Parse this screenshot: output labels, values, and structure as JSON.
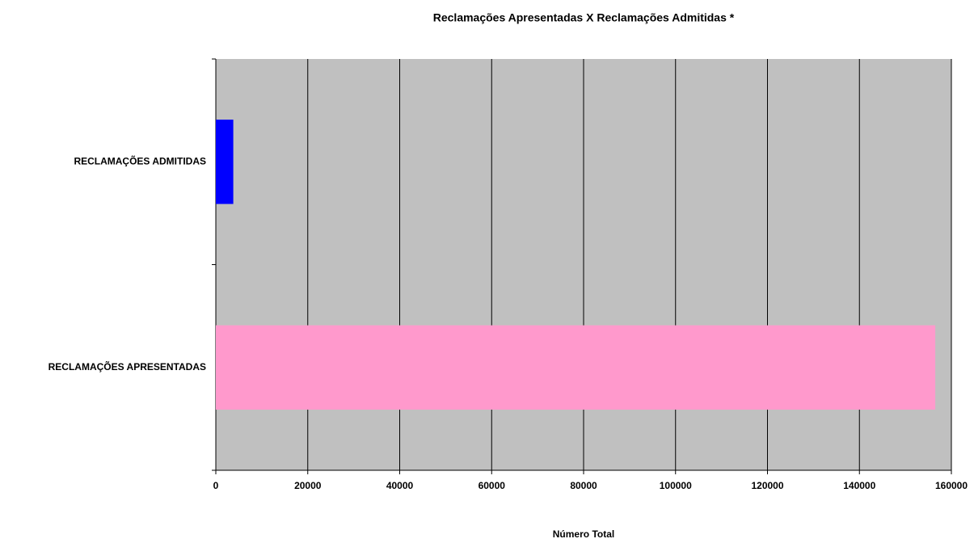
{
  "chart_data": {
    "type": "bar",
    "orientation": "horizontal",
    "title": "Reclamações Apresentadas X Reclamações Admitidas *",
    "x_label": "Número Total",
    "categories": [
      "RECLAMAÇÕES ADMITIDAS",
      "RECLAMAÇÕES APRESENTADAS"
    ],
    "values": [
      3800,
      156500
    ],
    "colors": [
      "#0000ff",
      "#ff99cc"
    ],
    "xlim": [
      0,
      160000
    ],
    "xticks": [
      0,
      20000,
      40000,
      60000,
      80000,
      100000,
      120000,
      140000,
      160000
    ],
    "grid": true
  }
}
